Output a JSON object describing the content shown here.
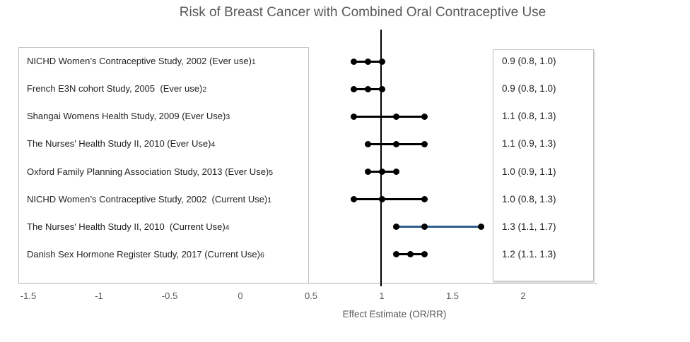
{
  "title": "Risk of Breast Cancer with Combined Oral Contraceptive Use",
  "studies": [
    {
      "label": "NICHD Women’s Contraceptive Study, 2002 (Ever use)",
      "cite": "1",
      "estimate": "0.9 (0.8, 1.0)"
    },
    {
      "label": "French E3N cohort Study, 2005  (Ever use)",
      "cite": "2",
      "estimate": "0.9 (0.8, 1.0)"
    },
    {
      "label": "Shangai Womens Health Study, 2009 (Ever Use)",
      "cite": "3",
      "estimate": "1.1 (0.8, 1.3)"
    },
    {
      "label": "The Nurses' Health Study II, 2010 (Ever Use)",
      "cite": "4",
      "estimate": "1.1 (0.9, 1.3)"
    },
    {
      "label": "Oxford Family Planning Association Study, 2013 (Ever Use)",
      "cite": "5",
      "estimate": "1.0 (0.9, 1.1)"
    },
    {
      "label": "NICHD Women’s Contraceptive Study, 2002  (Current Use)",
      "cite": "1",
      "estimate": "1.0 (0.8, 1.3)"
    },
    {
      "label": "The Nurses' Health Study II, 2010  (Current Use)",
      "cite": "4",
      "estimate": "1.3 (1.1, 1.7)"
    },
    {
      "label": "Danish Sex Hormone Register Study, 2017 (Current Use)",
      "cite": "6",
      "estimate": "1.2 (1.1. 1.3)"
    }
  ],
  "colors": {
    "title_text": "#595959",
    "label_text": "#212121",
    "box_border": "#bfbfbf",
    "axis_line": "#d9d9d9",
    "marker": "#000000",
    "highlight_line": "#2F5B8C"
  },
  "chart_data": {
    "type": "scatter",
    "subtype": "forest-plot",
    "title": "Risk of Breast Cancer with Combined Oral Contraceptive Use",
    "xlabel": "Effect Estimate (OR/RR)",
    "x_ticks": [
      "-1.5",
      "-1",
      "-0.5",
      "0",
      "0.5",
      "1",
      "1.5",
      "2"
    ],
    "x_tick_values": [
      -1.5,
      -1,
      -0.5,
      0,
      0.5,
      1,
      1.5,
      2
    ],
    "xlim": [
      -1.5,
      2.5
    ],
    "reference_line_x": 1,
    "grid": false,
    "marker_color": "#000000",
    "rows": [
      {
        "study": "NICHD Women’s Contraceptive Study, 2002 (Ever use)1",
        "mid": 0.9,
        "lo": 0.8,
        "hi": 1.0,
        "line_color": "#000000"
      },
      {
        "study": "French E3N cohort Study, 2005 (Ever use)2",
        "mid": 0.9,
        "lo": 0.8,
        "hi": 1.0,
        "line_color": "#000000"
      },
      {
        "study": "Shangai Womens Health Study, 2009 (Ever Use)3",
        "mid": 1.1,
        "lo": 0.8,
        "hi": 1.3,
        "line_color": "#000000"
      },
      {
        "study": "The Nurses' Health Study II, 2010 (Ever Use)4",
        "mid": 1.1,
        "lo": 0.9,
        "hi": 1.3,
        "line_color": "#000000"
      },
      {
        "study": "Oxford Family Planning Association Study, 2013 (Ever Use)5",
        "mid": 1.0,
        "lo": 0.9,
        "hi": 1.1,
        "line_color": "#000000"
      },
      {
        "study": "NICHD Women’s Contraceptive Study, 2002 (Current Use)1",
        "mid": 1.0,
        "lo": 0.8,
        "hi": 1.3,
        "line_color": "#000000"
      },
      {
        "study": "The Nurses' Health Study II, 2010 (Current Use)4",
        "mid": 1.3,
        "lo": 1.1,
        "hi": 1.7,
        "line_color": "#2F5B8C"
      },
      {
        "study": "Danish Sex Hormone Register Study, 2017 (Current Use)6",
        "mid": 1.2,
        "lo": 1.1,
        "hi": 1.3,
        "line_color": "#000000"
      }
    ]
  }
}
